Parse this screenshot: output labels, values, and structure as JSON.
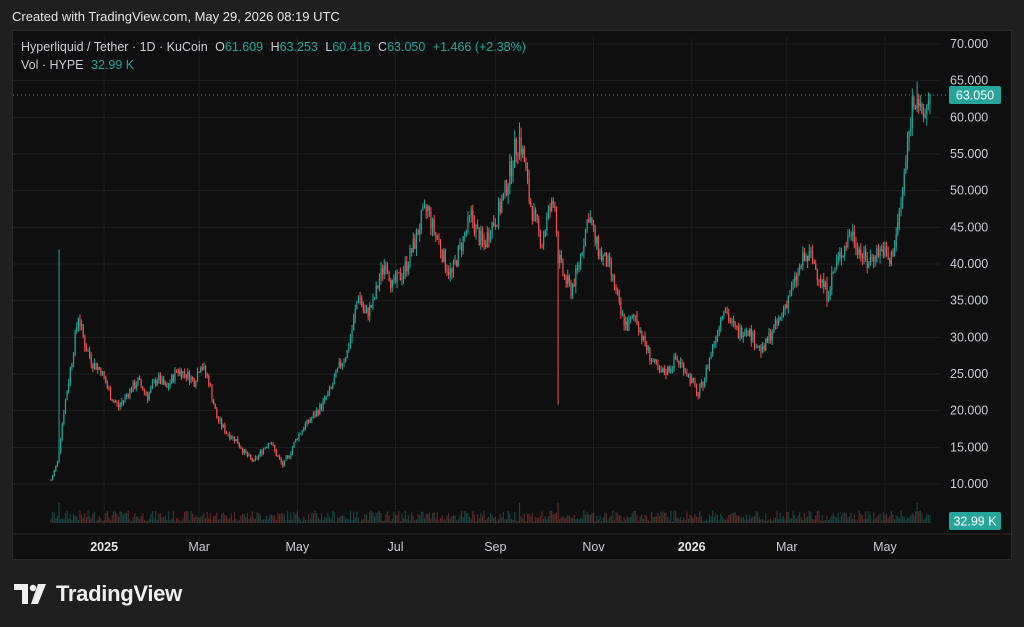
{
  "credit": "Created with TradingView.com, May 29, 2026 08:19 UTC",
  "brand": {
    "name": "TradingView",
    "icon": "tradingview-logo-icon"
  },
  "legend": {
    "symbol": "Hyperliquid / Tether · 1D · KuCoin",
    "o_label": "O",
    "o_value": "61.609",
    "h_label": "H",
    "h_value": "63.253",
    "l_label": "L",
    "l_value": "60.416",
    "c_label": "C",
    "c_value": "63.050",
    "change": "+1.466 (+2.38%)",
    "vol_label": "Vol · HYPE",
    "vol_value": "32.99 K"
  },
  "colors": {
    "up": "#26a69a",
    "down": "#ef5350",
    "background": "#0f0f0f",
    "grid": "#1e1e1e"
  },
  "chart_data": {
    "type": "candlestick",
    "x_labels": [
      "2025",
      "Mar",
      "May",
      "Jul",
      "Sep",
      "Nov",
      "2026",
      "Mar",
      "May"
    ],
    "y_ticks": [
      "70.000",
      "65.000",
      "60.000",
      "55.000",
      "50.000",
      "45.000",
      "40.000",
      "35.000",
      "30.000",
      "25.000",
      "20.000",
      "15.000",
      "10.000"
    ],
    "ylim": [
      10,
      70
    ],
    "last_price": 63.05,
    "last_price_label": "63.050",
    "volume_label": "32.99 K",
    "x_range": [
      "2024-11-29",
      "2026-05-29"
    ],
    "series": [
      {
        "values": [
          [
            "2024-11-29",
            10.5
          ],
          [
            "2024-12-03",
            13.0
          ],
          [
            "2024-12-07",
            20.0
          ],
          [
            "2024-12-12",
            27.0
          ],
          [
            "2024-12-16",
            33.0
          ],
          [
            "2024-12-20",
            29.0
          ],
          [
            "2024-12-25",
            26.5
          ],
          [
            "2024-12-30",
            25.5
          ],
          [
            "2025-01-05",
            22.0
          ],
          [
            "2025-01-10",
            20.5
          ],
          [
            "2025-01-16",
            22.5
          ],
          [
            "2025-01-22",
            24.0
          ],
          [
            "2025-01-28",
            22.0
          ],
          [
            "2025-02-03",
            24.5
          ],
          [
            "2025-02-09",
            23.0
          ],
          [
            "2025-02-15",
            25.5
          ],
          [
            "2025-02-21",
            25.0
          ],
          [
            "2025-02-26",
            24.0
          ],
          [
            "2025-03-02",
            26.5
          ],
          [
            "2025-03-07",
            24.0
          ],
          [
            "2025-03-12",
            19.0
          ],
          [
            "2025-03-18",
            17.0
          ],
          [
            "2025-03-24",
            16.0
          ],
          [
            "2025-03-30",
            14.0
          ],
          [
            "2025-04-04",
            13.0
          ],
          [
            "2025-04-09",
            14.5
          ],
          [
            "2025-04-14",
            16.0
          ],
          [
            "2025-04-18",
            14.0
          ],
          [
            "2025-04-22",
            12.5
          ],
          [
            "2025-04-26",
            14.0
          ],
          [
            "2025-05-01",
            16.5
          ],
          [
            "2025-05-06",
            18.0
          ],
          [
            "2025-05-12",
            19.5
          ],
          [
            "2025-05-17",
            21.0
          ],
          [
            "2025-05-22",
            23.0
          ],
          [
            "2025-05-27",
            26.0
          ],
          [
            "2025-06-01",
            28.0
          ],
          [
            "2025-06-04",
            31.0
          ],
          [
            "2025-06-08",
            36.0
          ],
          [
            "2025-06-12",
            33.0
          ],
          [
            "2025-06-17",
            34.5
          ],
          [
            "2025-06-21",
            38.0
          ],
          [
            "2025-06-25",
            40.5
          ],
          [
            "2025-06-29",
            37.0
          ],
          [
            "2025-07-03",
            38.0
          ],
          [
            "2025-07-08",
            40.0
          ],
          [
            "2025-07-13",
            43.0
          ],
          [
            "2025-07-17",
            46.0
          ],
          [
            "2025-07-21",
            47.5
          ],
          [
            "2025-07-24",
            45.0
          ],
          [
            "2025-07-28",
            43.0
          ],
          [
            "2025-08-01",
            40.0
          ],
          [
            "2025-08-05",
            38.5
          ],
          [
            "2025-08-09",
            41.5
          ],
          [
            "2025-08-13",
            44.0
          ],
          [
            "2025-08-17",
            46.5
          ],
          [
            "2025-08-21",
            44.0
          ],
          [
            "2025-08-25",
            42.5
          ],
          [
            "2025-08-29",
            45.0
          ],
          [
            "2025-09-02",
            46.5
          ],
          [
            "2025-09-06",
            49.0
          ],
          [
            "2025-09-10",
            52.5
          ],
          [
            "2025-09-13",
            55.5
          ],
          [
            "2025-09-16",
            57.0
          ],
          [
            "2025-09-19",
            54.0
          ],
          [
            "2025-09-22",
            49.0
          ],
          [
            "2025-09-26",
            45.5
          ],
          [
            "2025-09-30",
            43.0
          ],
          [
            "2025-10-04",
            47.0
          ],
          [
            "2025-10-08",
            48.5
          ],
          [
            "2025-10-10",
            41.0
          ],
          [
            "2025-10-14",
            38.0
          ],
          [
            "2025-10-18",
            36.5
          ],
          [
            "2025-10-22",
            39.0
          ],
          [
            "2025-10-26",
            43.5
          ],
          [
            "2025-10-29",
            47.0
          ],
          [
            "2025-11-02",
            43.0
          ],
          [
            "2025-11-06",
            41.0
          ],
          [
            "2025-11-10",
            40.0
          ],
          [
            "2025-11-14",
            37.0
          ],
          [
            "2025-11-18",
            33.0
          ],
          [
            "2025-11-22",
            31.5
          ],
          [
            "2025-11-27",
            33.0
          ],
          [
            "2025-12-02",
            29.5
          ],
          [
            "2025-12-07",
            27.0
          ],
          [
            "2025-12-12",
            25.0
          ],
          [
            "2025-12-17",
            25.5
          ],
          [
            "2025-12-22",
            27.0
          ],
          [
            "2025-12-27",
            26.0
          ],
          [
            "2026-01-01",
            24.0
          ],
          [
            "2026-01-05",
            22.0
          ],
          [
            "2026-01-09",
            24.5
          ],
          [
            "2026-01-13",
            28.0
          ],
          [
            "2026-01-17",
            31.0
          ],
          [
            "2026-01-21",
            34.5
          ],
          [
            "2026-01-25",
            32.0
          ],
          [
            "2026-01-30",
            30.5
          ],
          [
            "2026-02-04",
            31.5
          ],
          [
            "2026-02-09",
            29.5
          ],
          [
            "2026-02-14",
            28.0
          ],
          [
            "2026-02-19",
            30.5
          ],
          [
            "2026-02-24",
            32.0
          ],
          [
            "2026-03-01",
            35.0
          ],
          [
            "2026-03-06",
            37.5
          ],
          [
            "2026-03-11",
            40.5
          ],
          [
            "2026-03-16",
            41.0
          ],
          [
            "2026-03-21",
            38.5
          ],
          [
            "2026-03-26",
            36.0
          ],
          [
            "2026-03-31",
            39.5
          ],
          [
            "2026-04-05",
            42.0
          ],
          [
            "2026-04-10",
            44.5
          ],
          [
            "2026-04-15",
            42.0
          ],
          [
            "2026-04-20",
            40.0
          ],
          [
            "2026-04-25",
            41.5
          ],
          [
            "2026-04-30",
            42.0
          ],
          [
            "2026-05-04",
            40.0
          ],
          [
            "2026-05-08",
            44.0
          ],
          [
            "2026-05-12",
            50.0
          ],
          [
            "2026-05-15",
            56.0
          ],
          [
            "2026-05-18",
            62.0
          ],
          [
            "2026-05-21",
            63.5
          ],
          [
            "2026-05-24",
            59.0
          ],
          [
            "2026-05-27",
            61.6
          ],
          [
            "2026-05-29",
            63.05
          ]
        ]
      }
    ]
  }
}
